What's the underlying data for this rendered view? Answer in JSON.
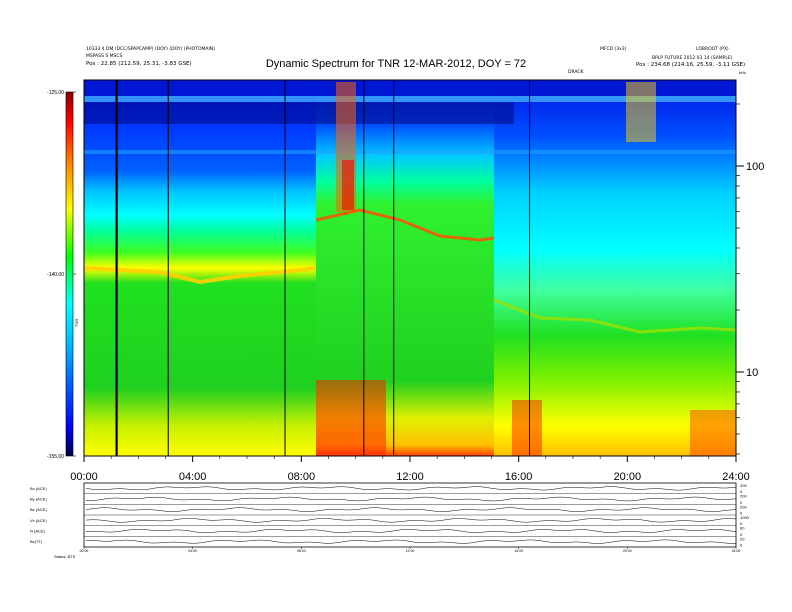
{
  "header": {
    "title": "Dynamic Spectrum for TNR 12-MAR-2012, DOY = 72",
    "left_line1": "10333 4 DM (DCC/SPAPCAMP) (DOY) (DOY) (PHOTOMAIN)",
    "left_line2": "MSPASS S MSCS",
    "left_pos": "Pos :  22.85 (212.59, 25.31, -3.83 GSE)",
    "mid_right_line1": "MFCD (3x3)",
    "right_line1": "LOBROOT (PX)",
    "right_line2": "BPLP FUTURE 2012 03 14 (SAMPLE)",
    "right_pos": "Pos :  234.68 (214.16, 25.59, -3.11 GSE)",
    "near_marker": "DRACK"
  },
  "chart_data": {
    "type": "heatmap",
    "title": "Dynamic Spectrum for TNR 12-MAR-2012, DOY = 72",
    "x_tick_labels": [
      "00:00",
      "04:00",
      "08:00",
      "12:00",
      "16:00",
      "20:00",
      "24:00"
    ],
    "x_range_hours": [
      0,
      24
    ],
    "colorbar": {
      "label": "TNR",
      "range": [
        -155,
        -125
      ],
      "tick_labels": [
        "-125.00",
        "-140.00",
        "-155.00"
      ],
      "colors": [
        "#000044",
        "#0000ff",
        "#00b4ff",
        "#00ffff",
        "#00ff00",
        "#ffff00",
        "#ff8800",
        "#ff0000",
        "#880000"
      ]
    },
    "y_right": {
      "scale": "log",
      "tick_labels": [
        "100",
        "10"
      ],
      "unit": "kHz"
    },
    "vertical_lines_hours": [
      1.2,
      3.1,
      7.4,
      10.3,
      11.4,
      16.4
    ],
    "bands": {
      "noise_floor_before_jump": -142,
      "noise_floor_after_jump": -138,
      "jump_hour": 8.5,
      "hf_band_start_hour": 15.0
    }
  },
  "small_panels": {
    "labels": [
      "Bx (ACE)",
      "By (ACE)",
      "Bz (ACE)",
      "Vx (ACE)",
      "N (ACE)",
      "Bz(TT)"
    ],
    "right_ticks": [
      [
        "200",
        "0"
      ],
      [
        "200",
        "0"
      ],
      [
        "200",
        "0"
      ],
      [
        "1000",
        "0"
      ],
      [
        "60",
        "0"
      ],
      [
        "20",
        "0"
      ]
    ],
    "x_tick_labels": [
      "00:00",
      "04:00",
      "08:00",
      "12:00",
      "16:00",
      "20:00",
      "24:00"
    ],
    "footer_left": "Status: BTS"
  }
}
